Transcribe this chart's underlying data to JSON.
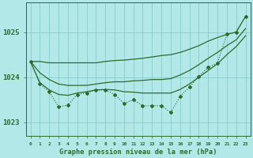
{
  "title": "Graphe pression niveau de la mer (hPa)",
  "bg_color": "#b2e8e8",
  "grid_color": "#80c8c8",
  "line_color": "#2d6a2d",
  "x_labels": [
    "0",
    "1",
    "2",
    "3",
    "4",
    "5",
    "6",
    "7",
    "8",
    "9",
    "10",
    "11",
    "12",
    "13",
    "14",
    "15",
    "16",
    "17",
    "18",
    "19",
    "20",
    "21",
    "22",
    "23"
  ],
  "ylim": [
    1022.7,
    1025.65
  ],
  "yticks": [
    1023,
    1024,
    1025
  ],
  "line_jagged": [
    1024.35,
    1023.85,
    1023.68,
    1023.35,
    1023.38,
    1023.62,
    1023.65,
    1023.72,
    1023.72,
    1023.62,
    1023.42,
    1023.5,
    1023.37,
    1023.37,
    1023.37,
    1023.22,
    1023.58,
    1023.78,
    1024.02,
    1024.22,
    1024.32,
    1024.95,
    1025.0,
    1025.35
  ],
  "line_upper": [
    1024.35,
    1024.35,
    1024.32,
    1024.32,
    1024.32,
    1024.32,
    1024.32,
    1024.32,
    1024.35,
    1024.37,
    1024.38,
    1024.4,
    1024.42,
    1024.45,
    1024.48,
    1024.5,
    1024.55,
    1024.62,
    1024.7,
    1024.8,
    1024.88,
    1024.95,
    1025.0,
    1025.35
  ],
  "line_mid": [
    1024.35,
    1024.1,
    1023.95,
    1023.85,
    1023.82,
    1023.82,
    1023.82,
    1023.85,
    1023.88,
    1023.9,
    1023.9,
    1023.92,
    1023.93,
    1023.95,
    1023.95,
    1023.97,
    1024.05,
    1024.15,
    1024.28,
    1024.42,
    1024.55,
    1024.7,
    1024.83,
    1025.08
  ],
  "line_lower": [
    1024.35,
    1023.88,
    1023.72,
    1023.62,
    1023.6,
    1023.65,
    1023.68,
    1023.72,
    1023.73,
    1023.72,
    1023.68,
    1023.67,
    1023.65,
    1023.65,
    1023.65,
    1023.65,
    1023.73,
    1023.85,
    1024.0,
    1024.15,
    1024.3,
    1024.5,
    1024.68,
    1024.92
  ]
}
